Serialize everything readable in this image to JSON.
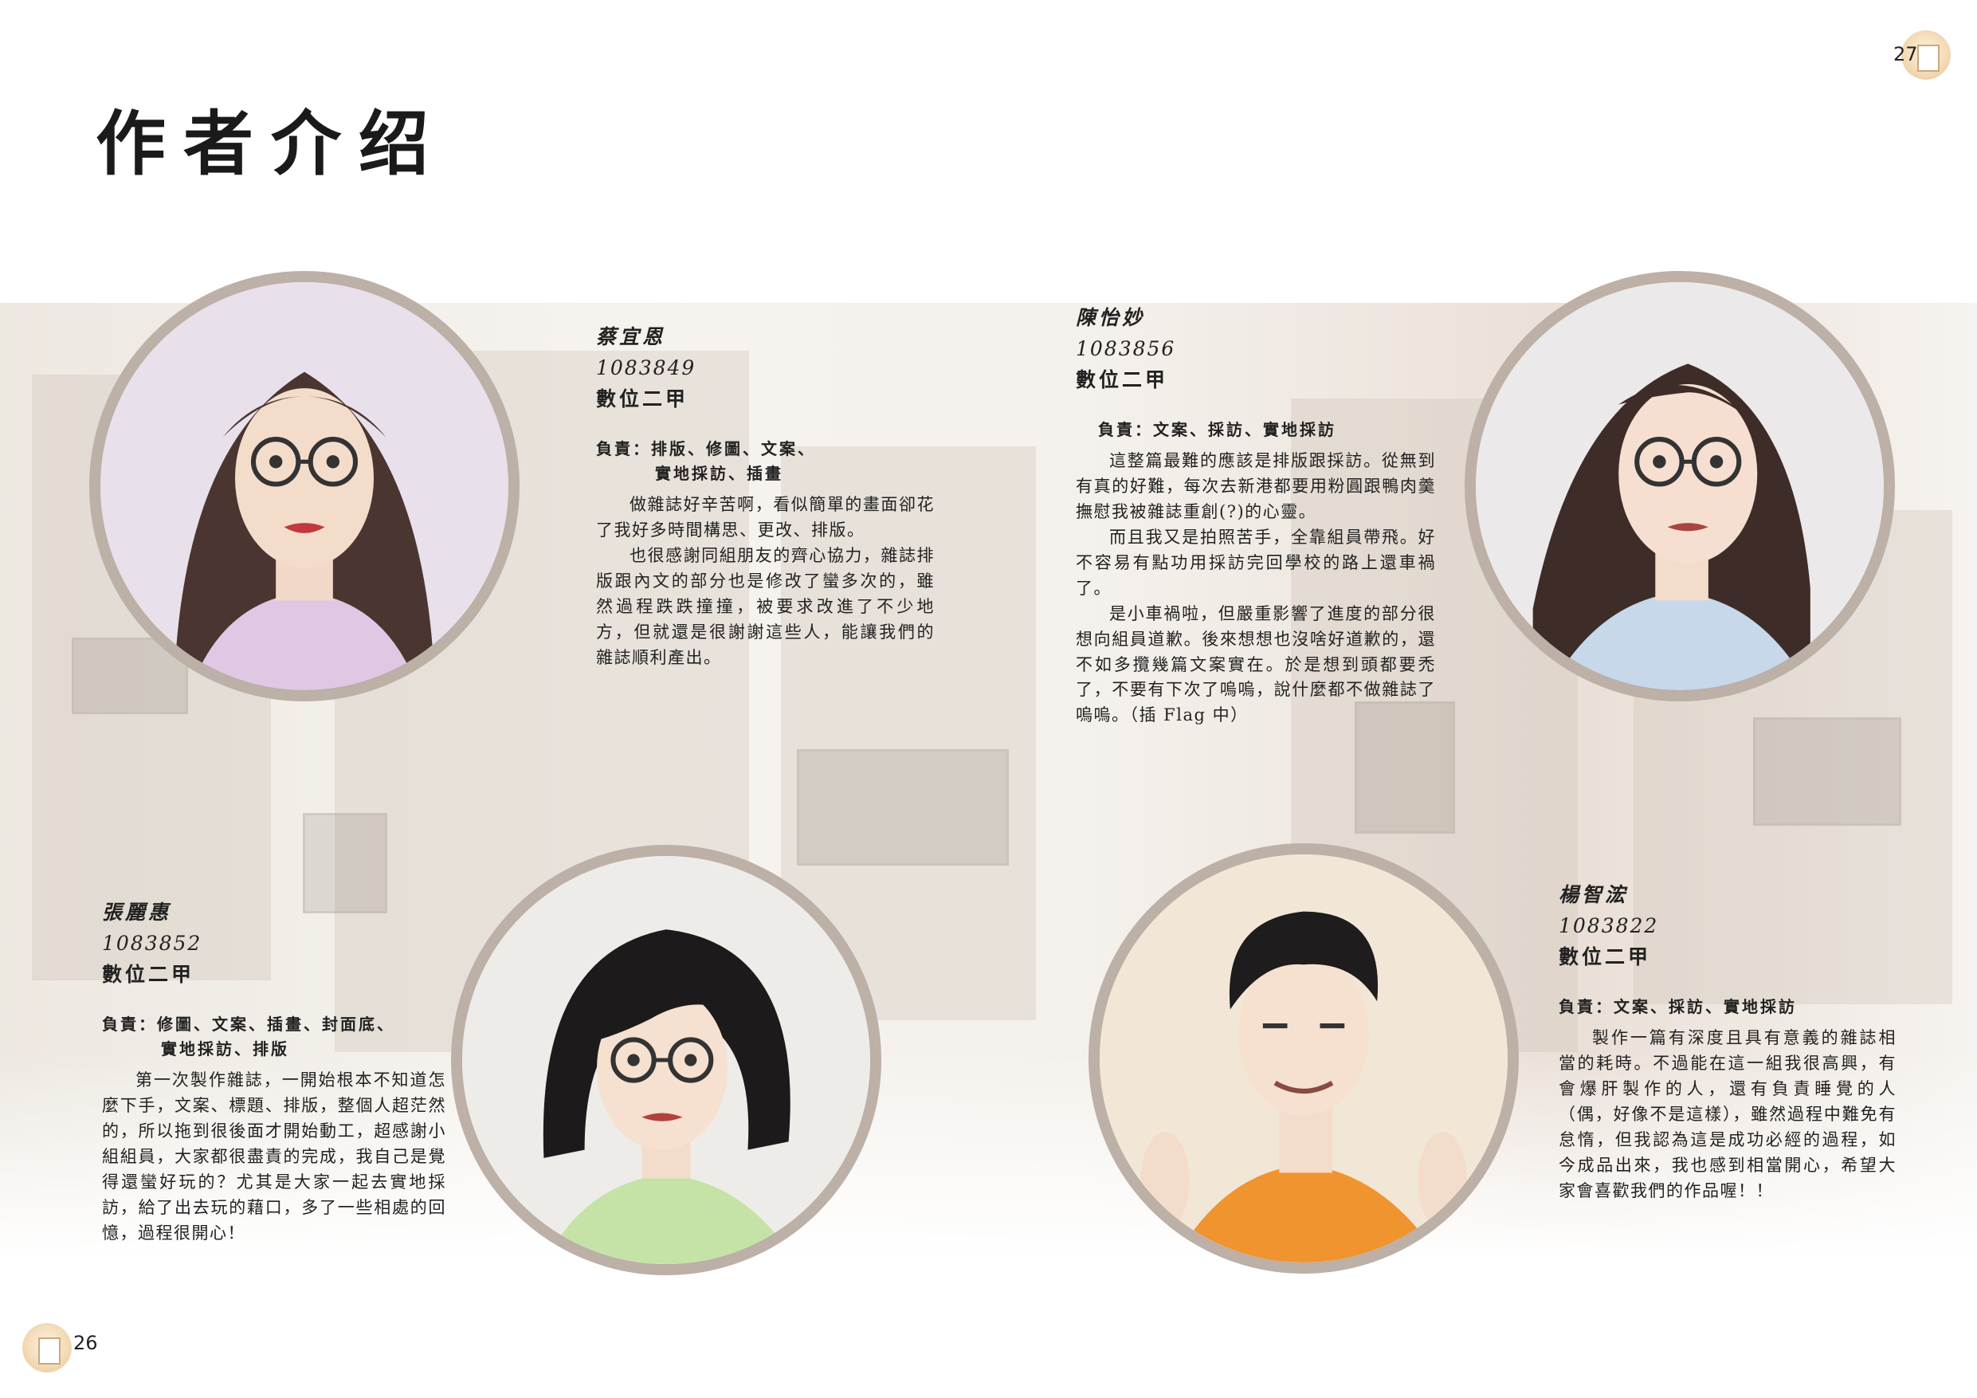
{
  "page": {
    "title": "作者介绍",
    "left_page_number": "26",
    "right_page_number": "27"
  },
  "authors": [
    {
      "name": "蔡宜恩",
      "student_id": "1083849",
      "class": "數位二甲",
      "duty_line1": "負責：排版、修圖、文案、",
      "duty_line2": "實地採訪、插畫",
      "paragraphs": [
        "做雜誌好辛苦啊，看似簡單的畫面卻花了我好多時間構思、更改、排版。",
        "也很感謝同組朋友的齊心協力，雜誌排版跟內文的部分也是修改了蠻多次的，雖然過程跌跌撞撞，被要求改進了不少地方，但就還是很謝謝這些人，能讓我們的雜誌順利產出。"
      ]
    },
    {
      "name": "陳怡妙",
      "student_id": "1083856",
      "class": "數位二甲",
      "duty_line1": "負責：文案、採訪、實地採訪",
      "duty_line2": "",
      "paragraphs": [
        "這整篇最難的應該是排版跟採訪。從無到有真的好難，每次去新港都要用粉圓跟鴨肉羹撫慰我被雜誌重創(?)的心靈。",
        "而且我又是拍照苦手，全靠組員帶飛。好不容易有點功用採訪完回學校的路上還車禍了。",
        "是小車禍啦，但嚴重影響了進度的部分很想向組員道歉。後來想想也沒啥好道歉的，還不如多攬幾篇文案實在。於是想到頭都要禿了，不要有下次了嗚嗚，說什麼都不做雜誌了嗚嗚。（插 Flag 中）"
      ]
    },
    {
      "name": "張麗惠",
      "student_id": "1083852",
      "class": "數位二甲",
      "duty_line1": "負責：修圖、文案、插畫、封面底、",
      "duty_line2": "實地採訪、排版",
      "paragraphs": [
        "第一次製作雜誌，一開始根本不知道怎麼下手，文案、標題、排版，整個人超茫然的，所以拖到很後面才開始動工，超感謝小組組員，大家都很盡責的完成，我自己是覺得還蠻好玩的？尤其是大家一起去實地採訪，給了出去玩的藉口，多了一些相處的回憶，過程很開心！"
      ]
    },
    {
      "name": "楊智浤",
      "student_id": "1083822",
      "class": "數位二甲",
      "duty_line1": "負責：文案、採訪、實地採訪",
      "duty_line2": "",
      "paragraphs": [
        "製作一篇有深度且具有意義的雜誌相當的耗時。不過能在這一組我很高興，有會爆肝製作的人，還有負責睡覺的人（偶，好像不是這樣），雖然過程中難免有怠惰，但我認為這是成功必經的過程，如今成品出來，我也感到相當開心，希望大家會喜歡我們的作品喔！！"
      ]
    }
  ],
  "colors": {
    "portrait_ring": "#bcb0a7",
    "background_tint": "#e7e0d6"
  },
  "icons": [
    "page-badge-icon",
    "building-icon"
  ]
}
